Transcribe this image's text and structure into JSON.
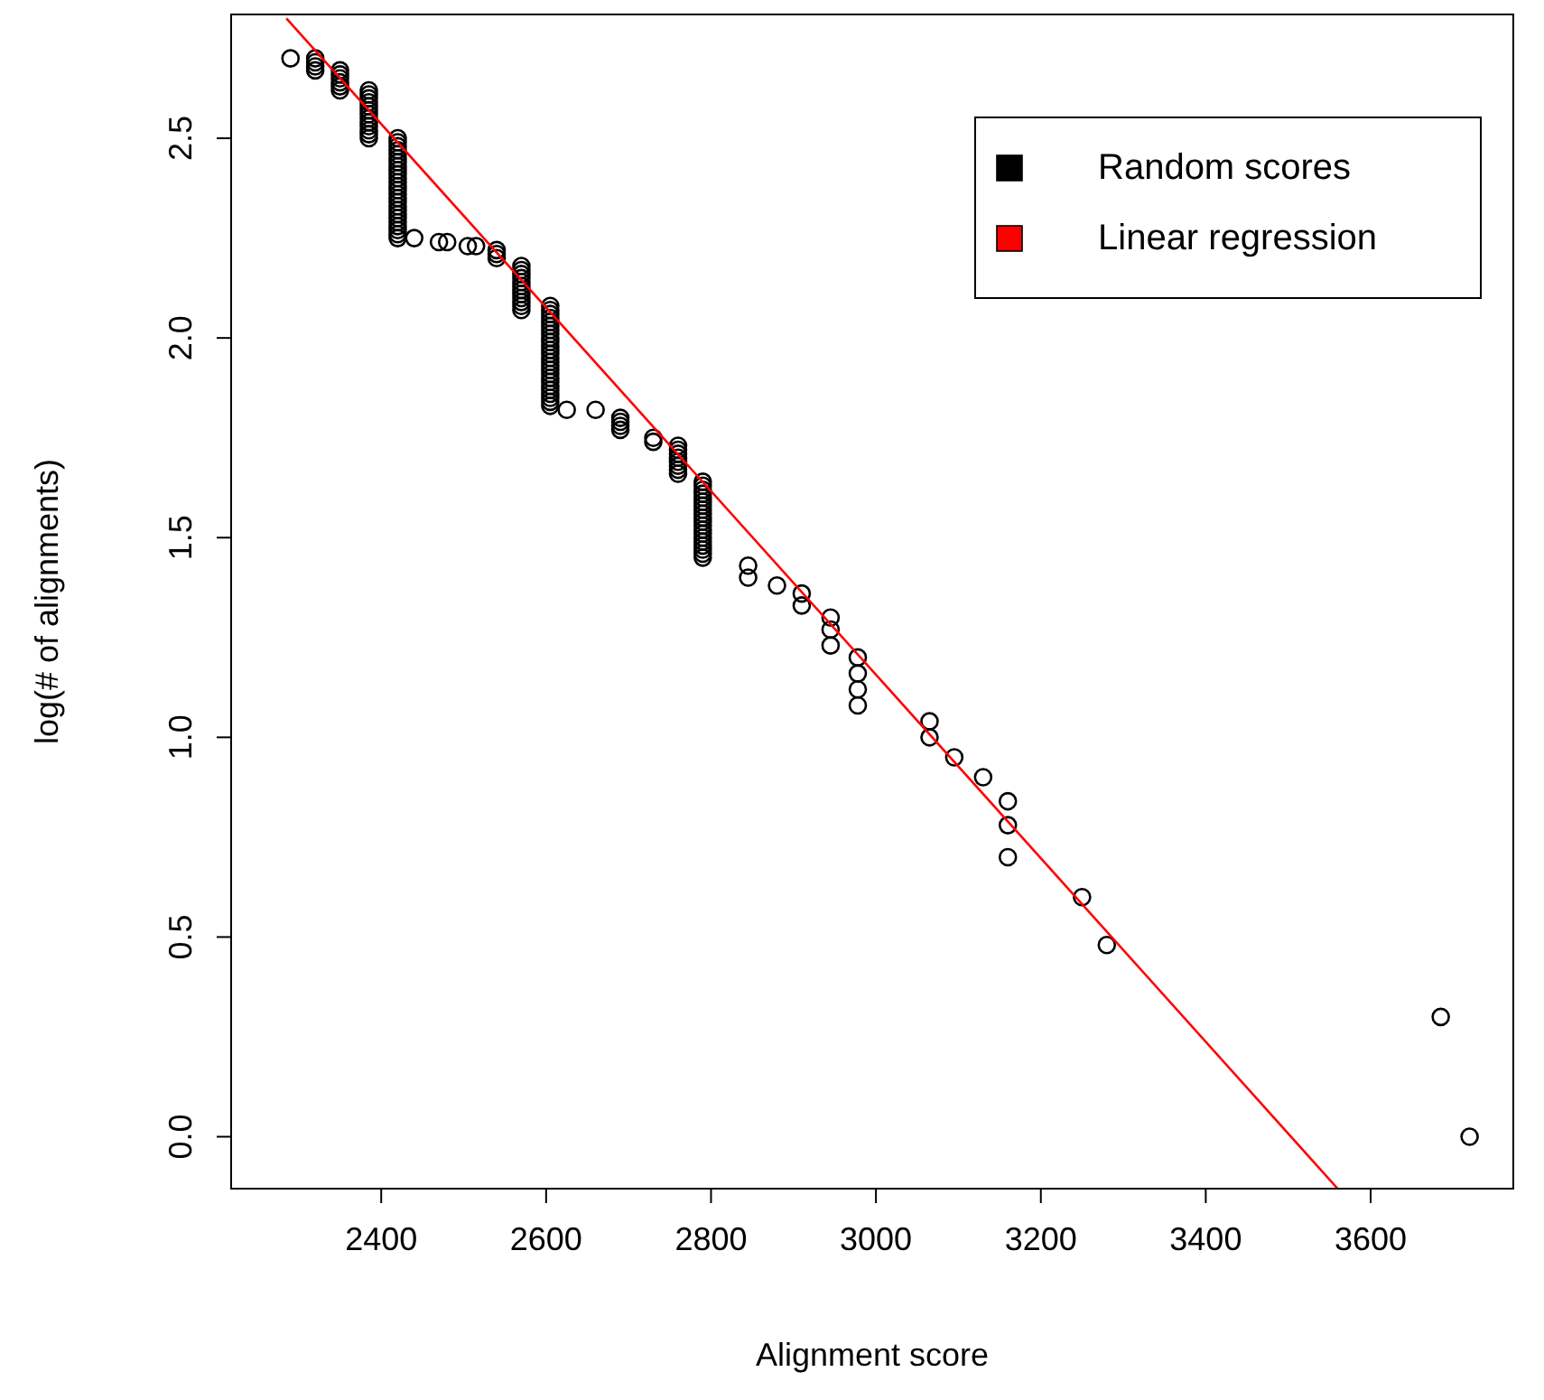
{
  "chart_data": {
    "type": "scatter",
    "xlabel": "Alignment score",
    "ylabel": "log(# of alignments)",
    "xlim": [
      2218,
      3773
    ],
    "ylim": [
      -0.13,
      2.81
    ],
    "xticks": [
      2400,
      2600,
      2800,
      3000,
      3200,
      3400,
      3600
    ],
    "yticks": [
      {
        "value": 0,
        "label": "0.0"
      },
      0.5,
      {
        "value": 1,
        "label": "1.0"
      },
      1.5,
      {
        "value": 2,
        "label": "2.0"
      },
      2.5
    ],
    "legend": "top right",
    "series": [
      {
        "name": "Random scores",
        "marker": "circle",
        "color": "#000000",
        "x": [
          2290,
          2320,
          2320,
          2320,
          2320,
          2350,
          2350,
          2350,
          2350,
          2350,
          2350,
          2385,
          2385,
          2385,
          2385,
          2385,
          2385,
          2385,
          2385,
          2385,
          2385,
          2385,
          2385,
          2385,
          2420,
          2420,
          2420,
          2420,
          2420,
          2420,
          2420,
          2420,
          2420,
          2420,
          2420,
          2420,
          2420,
          2420,
          2420,
          2420,
          2420,
          2420,
          2420,
          2420,
          2420,
          2420,
          2420,
          2420,
          2420,
          2420,
          2440,
          2470,
          2480,
          2505,
          2515,
          2540,
          2540,
          2540,
          2570,
          2570,
          2570,
          2570,
          2570,
          2570,
          2570,
          2570,
          2570,
          2570,
          2570,
          2570,
          2605,
          2605,
          2605,
          2605,
          2605,
          2605,
          2605,
          2605,
          2605,
          2605,
          2605,
          2605,
          2605,
          2605,
          2605,
          2605,
          2605,
          2605,
          2605,
          2605,
          2605,
          2605,
          2605,
          2605,
          2605,
          2605,
          2625,
          2660,
          2690,
          2690,
          2690,
          2690,
          2730,
          2730,
          2760,
          2760,
          2760,
          2760,
          2760,
          2760,
          2760,
          2760,
          2790,
          2790,
          2790,
          2790,
          2790,
          2790,
          2790,
          2790,
          2790,
          2790,
          2790,
          2790,
          2790,
          2790,
          2790,
          2790,
          2790,
          2790,
          2790,
          2790,
          2845,
          2845,
          2880,
          2910,
          2910,
          2945,
          2945,
          2945,
          2978,
          2978,
          2978,
          2978,
          3065,
          3065,
          3095,
          3130,
          3160,
          3160,
          3160,
          3250,
          3280,
          3685,
          3720
        ],
        "values": [
          2.7,
          2.7,
          2.69,
          2.68,
          2.67,
          2.67,
          2.66,
          2.65,
          2.64,
          2.63,
          2.62,
          2.62,
          2.61,
          2.6,
          2.59,
          2.58,
          2.57,
          2.56,
          2.55,
          2.54,
          2.53,
          2.52,
          2.51,
          2.5,
          2.5,
          2.49,
          2.48,
          2.47,
          2.46,
          2.45,
          2.44,
          2.43,
          2.42,
          2.41,
          2.4,
          2.39,
          2.38,
          2.37,
          2.36,
          2.35,
          2.34,
          2.33,
          2.32,
          2.31,
          2.3,
          2.29,
          2.28,
          2.27,
          2.26,
          2.25,
          2.25,
          2.24,
          2.24,
          2.23,
          2.23,
          2.22,
          2.21,
          2.2,
          2.18,
          2.17,
          2.16,
          2.15,
          2.14,
          2.13,
          2.12,
          2.11,
          2.1,
          2.09,
          2.08,
          2.07,
          2.08,
          2.07,
          2.06,
          2.05,
          2.04,
          2.03,
          2.02,
          2.01,
          2.0,
          1.99,
          1.98,
          1.97,
          1.96,
          1.95,
          1.94,
          1.93,
          1.92,
          1.91,
          1.9,
          1.89,
          1.88,
          1.87,
          1.86,
          1.85,
          1.84,
          1.83,
          1.82,
          1.82,
          1.8,
          1.79,
          1.78,
          1.77,
          1.75,
          1.74,
          1.73,
          1.72,
          1.71,
          1.7,
          1.69,
          1.68,
          1.67,
          1.66,
          1.64,
          1.63,
          1.62,
          1.61,
          1.6,
          1.59,
          1.58,
          1.57,
          1.56,
          1.55,
          1.54,
          1.53,
          1.52,
          1.51,
          1.5,
          1.49,
          1.48,
          1.47,
          1.46,
          1.45,
          1.43,
          1.4,
          1.38,
          1.36,
          1.33,
          1.3,
          1.27,
          1.23,
          1.2,
          1.16,
          1.12,
          1.08,
          1.04,
          1.0,
          0.95,
          0.9,
          0.84,
          0.78,
          0.7,
          0.6,
          0.48,
          0.3,
          0.0
        ]
      },
      {
        "name": "Linear regression",
        "type": "line",
        "color": "#ff0000",
        "x": [
          2285,
          3560
        ],
        "values": [
          2.8,
          -0.13
        ]
      }
    ]
  }
}
